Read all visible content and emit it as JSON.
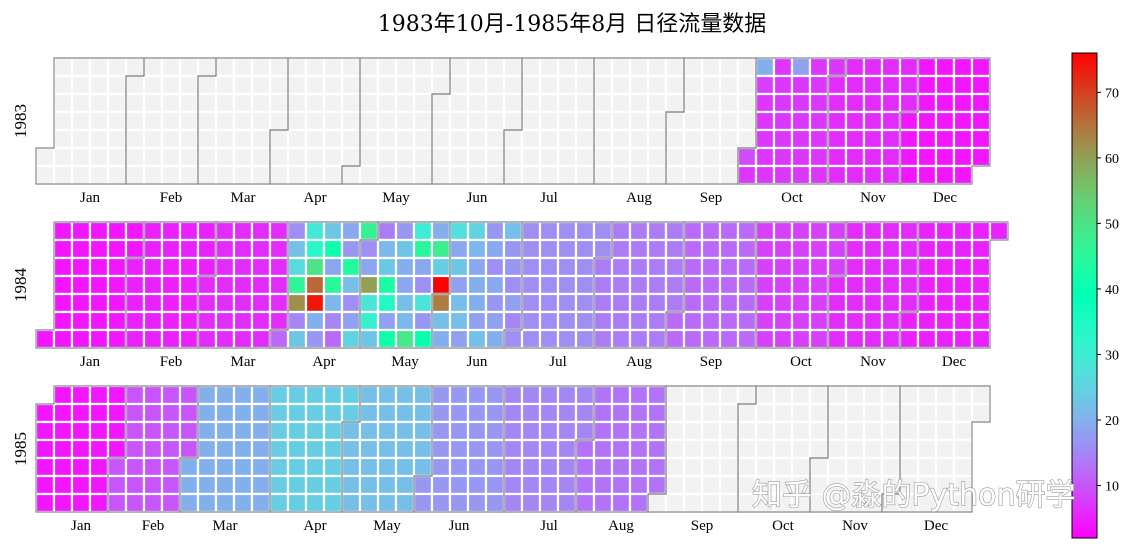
{
  "chart_data": {
    "type": "heatmap",
    "subtype": "calendar-heatmap",
    "title": "1983年10月-1985年8月 日径流量数据",
    "colormap": "rainbow",
    "colorbar": {
      "min": 2,
      "max": 76,
      "ticks": [
        10,
        20,
        30,
        40,
        50,
        60,
        70
      ]
    },
    "empty_color": "#f2f2f2",
    "month_labels": [
      "Jan",
      "Feb",
      "Mar",
      "Apr",
      "May",
      "Jun",
      "Jul",
      "Aug",
      "Sep",
      "Oct",
      "Nov",
      "Dec"
    ],
    "years": [
      {
        "year": "1983",
        "start_date": "1983-10-01",
        "end_date": "1983-12-31",
        "monthly_values": {
          "10": [
            9,
            7,
            20,
            8,
            7,
            7,
            7,
            7,
            7,
            7,
            7,
            7,
            7,
            7,
            7,
            7,
            18,
            7,
            7,
            7,
            7,
            7,
            7,
            7,
            7,
            7,
            7,
            7,
            7,
            7,
            7
          ],
          "11": 6,
          "12": 4
        }
      },
      {
        "year": "1984",
        "start_date": "1984-01-01",
        "end_date": "1984-12-31",
        "monthly_values": {
          "1": 4,
          "2": 5,
          "3": 6,
          "4": [
            12,
            16,
            22,
            26,
            46,
            62,
            15,
            23,
            29,
            33,
            50,
            66,
            74,
            20,
            17,
            23,
            41,
            19,
            45,
            21,
            15,
            12,
            19,
            17,
            44,
            22,
            16,
            18,
            25,
            47
          ],
          "5": [
            16,
            19,
            60,
            28,
            31,
            23,
            14,
            21,
            23,
            43,
            34,
            18,
            41,
            17,
            23,
            20,
            19,
            22,
            21,
            49,
            30,
            45,
            19,
            16,
            28,
            17,
            40,
            20,
            48,
            24,
            76
          ],
          "6": [
            64,
            22,
            20,
            27,
            19,
            23,
            18,
            22,
            22,
            18,
            25,
            21,
            19,
            20,
            20,
            18,
            22,
            17,
            19,
            16,
            19,
            17,
            18,
            20,
            22,
            17,
            17,
            16,
            18,
            15
          ],
          "7": 16,
          "8": 14,
          "9": 12,
          "10": 8,
          "11": 6,
          "12": 5
        }
      },
      {
        "year": "1985",
        "start_date": "1985-01-01",
        "end_date": "1985-08-31",
        "monthly_values": {
          "1": 4,
          "2": 10,
          "3": 20,
          "4": 24,
          "5": 22,
          "6": 17,
          "7": 15,
          "8": 13
        }
      }
    ]
  },
  "watermark": "知乎 @淼的Python研学"
}
